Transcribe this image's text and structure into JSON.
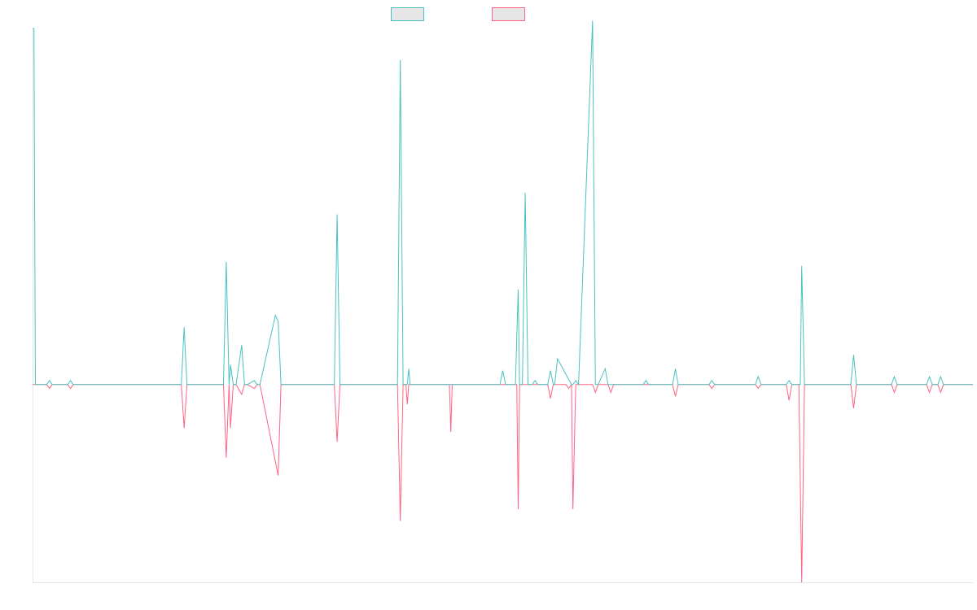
{
  "colors": {
    "series_up": "#4bc0c0",
    "series_down": "#ff6384",
    "axis": "#e6e6e6",
    "legend_fill": "#e6e6e6"
  },
  "chart_data": {
    "type": "line",
    "title": "",
    "xlabel": "",
    "ylabel": "",
    "ylim": [
      -1,
      1.8
    ],
    "xlim": [
      0,
      134
    ],
    "grid": false,
    "legend_position": "top",
    "series": [
      {
        "color": "#4bc0c0",
        "x": [
          0,
          0.2,
          0.4,
          2,
          2.4,
          2.8,
          5,
          5.4,
          5.8,
          21.2,
          21.6,
          22,
          27.2,
          27.6,
          28,
          28.2,
          28.6,
          29,
          29.8,
          30.2,
          30.6,
          31.6,
          32,
          32.4,
          34.6,
          35,
          35.4,
          35.6,
          35.8,
          43,
          43.4,
          43.8,
          52,
          52.4,
          52.8,
          53,
          53.2,
          53.4,
          53.6,
          53.8,
          54,
          66.6,
          67,
          67.4,
          68.8,
          69.2,
          69.4,
          69.8,
          70.2,
          70.6,
          71.2,
          71.6,
          72,
          73.4,
          73.8,
          74.2,
          74.4,
          74.8,
          76.8,
          77,
          77.4,
          77.8,
          79.8,
          80.2,
          80.6,
          81.6,
          82,
          82.4,
          87,
          87.4,
          87.8,
          91.2,
          91.6,
          92,
          96.4,
          96.8,
          97.2,
          103,
          103.4,
          103.8,
          107.4,
          107.8,
          108.2,
          109.4,
          109.6,
          110,
          110.4,
          116.6,
          117,
          117.4,
          122.4,
          122.8,
          123.2,
          127.4,
          127.8,
          128.2,
          129,
          129.4,
          129.8,
          134
        ],
        "values": [
          1.8,
          1.8,
          0,
          0,
          0.02,
          0,
          0,
          0.02,
          0,
          0,
          0.29,
          0,
          0,
          0.62,
          0,
          0.1,
          0,
          0,
          0.2,
          0,
          0,
          0.02,
          0,
          0,
          0.35,
          0.32,
          0,
          0,
          0,
          0,
          0.86,
          0,
          0,
          1.64,
          0,
          0,
          0,
          0,
          0.08,
          0,
          0,
          0,
          0.07,
          0,
          0,
          0.48,
          0,
          0,
          0.97,
          0,
          0,
          0.02,
          0,
          0,
          0.07,
          0,
          0,
          0.13,
          0,
          0,
          0.02,
          0,
          1.84,
          0,
          0,
          0.08,
          0,
          0,
          0,
          0.02,
          0,
          0,
          0.08,
          0,
          0,
          0.02,
          0,
          0,
          0.04,
          0,
          0,
          0.02,
          0,
          0,
          0.6,
          0,
          0,
          0,
          0.15,
          0,
          0,
          0.04,
          0,
          0,
          0.04,
          0,
          0,
          0.04,
          0,
          0
        ]
      },
      {
        "color": "#ff6384",
        "x": [
          0,
          2,
          2.4,
          2.8,
          5,
          5.4,
          5.8,
          21.2,
          21.6,
          22,
          27.2,
          27.6,
          28,
          28.2,
          28.6,
          29,
          29.8,
          30.2,
          30.6,
          31.6,
          32,
          32.4,
          35,
          35.4,
          35.8,
          43,
          43.4,
          43.8,
          52,
          52.4,
          52.8,
          53,
          53.2,
          53.4,
          53.6,
          53.8,
          59.4,
          59.6,
          59.8,
          66.6,
          67,
          67.4,
          69,
          69.2,
          69.4,
          73.4,
          73.8,
          74.2,
          76,
          76.4,
          76.8,
          77,
          77.4,
          79.8,
          80.2,
          80.6,
          82,
          82.4,
          82.8,
          87,
          87.4,
          87.8,
          91.2,
          91.6,
          92,
          96.4,
          96.8,
          97.2,
          103,
          103.4,
          103.8,
          107.4,
          107.8,
          108.2,
          109.2,
          109.6,
          110,
          116.6,
          117,
          117.4,
          122.4,
          122.8,
          123.2,
          127.4,
          127.8,
          128.2,
          129,
          129.4,
          129.8,
          134
        ],
        "values": [
          0,
          0,
          -0.02,
          0,
          0,
          -0.02,
          0,
          0,
          -0.22,
          0,
          0,
          -0.37,
          0,
          -0.22,
          0,
          0,
          -0.05,
          0,
          0,
          -0.02,
          0,
          0,
          -0.46,
          0,
          0,
          0,
          -0.29,
          0,
          0,
          -0.69,
          0,
          0,
          0,
          -0.1,
          0,
          0,
          0,
          -0.24,
          0,
          0,
          0,
          0,
          0,
          -0.63,
          0,
          0,
          -0.07,
          0,
          0,
          -0.02,
          0,
          -0.63,
          0,
          0,
          -0.04,
          0,
          0,
          -0.04,
          0,
          0,
          0,
          0,
          0,
          -0.06,
          0,
          0,
          -0.02,
          0,
          0,
          -0.02,
          0,
          0,
          -0.08,
          0,
          0,
          -1,
          0,
          0,
          -0.12,
          0,
          0,
          -0.04,
          0,
          0,
          -0.04,
          0,
          0,
          -0.04,
          0,
          0
        ]
      }
    ]
  }
}
